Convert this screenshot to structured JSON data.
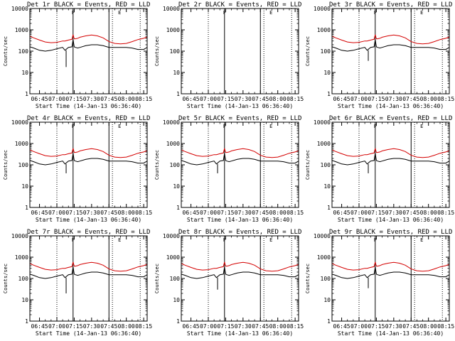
{
  "chart_data": [
    {
      "type": "line",
      "title": "Det 1r BLACK = Events, RED = LLD",
      "ylabel": "Counts/sec",
      "xlabel": "Start Time (14-Jan-13 06:36:40)",
      "x_ticks": [
        "06:45",
        "07:00",
        "07:15",
        "07:30",
        "07:45",
        "08:00",
        "08:15"
      ],
      "y_ticks": [
        "1",
        "10",
        "100",
        "1000",
        "10000"
      ],
      "ylim": [
        1,
        10000
      ],
      "scale": "log",
      "black_min": 18,
      "has_data": true,
      "flag_labels": [
        "F",
        "E"
      ],
      "series": [
        {
          "name": "Events",
          "color": "#000000"
        },
        {
          "name": "LLD",
          "color": "#d40000"
        }
      ]
    },
    {
      "type": "line",
      "title": "Det 2r BLACK = Events, RED = LLD",
      "ylabel": "Counts/sec",
      "xlabel": "Start Time (14-Jan-13 06:36:40)",
      "x_ticks": [
        "06:45",
        "07:00",
        "07:15",
        "07:30",
        "07:45",
        "08:00",
        "08:15"
      ],
      "y_ticks": [
        "1",
        "10",
        "100",
        "1000",
        "10000"
      ],
      "ylim": [
        1,
        10000
      ],
      "scale": "log",
      "black_min": 0,
      "has_data": false,
      "flag_labels": [
        "F",
        "E"
      ],
      "series": [
        {
          "name": "Events",
          "color": "#000000"
        },
        {
          "name": "LLD",
          "color": "#d40000"
        }
      ]
    },
    {
      "type": "line",
      "title": "Det 3r BLACK = Events, RED = LLD",
      "ylabel": "Counts/sec",
      "xlabel": "Start Time (14-Jan-13 06:36:40)",
      "x_ticks": [
        "06:45",
        "07:00",
        "07:15",
        "07:30",
        "07:45",
        "08:00",
        "08:15"
      ],
      "y_ticks": [
        "1",
        "10",
        "100",
        "1000",
        "10000"
      ],
      "ylim": [
        1,
        10000
      ],
      "scale": "log",
      "black_min": 35,
      "has_data": true,
      "flag_labels": [
        "F",
        "E"
      ],
      "series": [
        {
          "name": "Events",
          "color": "#000000"
        },
        {
          "name": "LLD",
          "color": "#d40000"
        }
      ]
    },
    {
      "type": "line",
      "title": "Det 4r BLACK = Events, RED = LLD",
      "ylabel": "Counts/sec",
      "xlabel": "Start Time (14-Jan-13 06:36:40)",
      "x_ticks": [
        "06:45",
        "07:00",
        "07:15",
        "07:30",
        "07:45",
        "08:00",
        "08:15"
      ],
      "y_ticks": [
        "1",
        "10",
        "100",
        "1000",
        "10000"
      ],
      "ylim": [
        1,
        10000
      ],
      "scale": "log",
      "black_min": 40,
      "has_data": true,
      "flag_labels": [
        "F",
        "E"
      ],
      "series": [
        {
          "name": "Events",
          "color": "#000000"
        },
        {
          "name": "LLD",
          "color": "#d40000"
        }
      ]
    },
    {
      "type": "line",
      "title": "Det 5r BLACK = Events, RED = LLD",
      "ylabel": "Counts/sec",
      "xlabel": "Start Time (14-Jan-13 06:36:40)",
      "x_ticks": [
        "06:45",
        "07:00",
        "07:15",
        "07:30",
        "07:45",
        "08:00",
        "08:15"
      ],
      "y_ticks": [
        "1",
        "10",
        "100",
        "1000",
        "10000"
      ],
      "ylim": [
        1,
        10000
      ],
      "scale": "log",
      "black_min": 40,
      "has_data": true,
      "flag_labels": [
        "F",
        "E"
      ],
      "series": [
        {
          "name": "Events",
          "color": "#000000"
        },
        {
          "name": "LLD",
          "color": "#d40000"
        }
      ]
    },
    {
      "type": "line",
      "title": "Det 6r BLACK = Events, RED = LLD",
      "ylabel": "Counts/sec",
      "xlabel": "Start Time (14-Jan-13 06:36:40)",
      "x_ticks": [
        "06:45",
        "07:00",
        "07:15",
        "07:30",
        "07:45",
        "08:00",
        "08:15"
      ],
      "y_ticks": [
        "1",
        "10",
        "100",
        "1000",
        "10000"
      ],
      "ylim": [
        1,
        10000
      ],
      "scale": "log",
      "black_min": 40,
      "has_data": true,
      "flag_labels": [
        "F",
        "E"
      ],
      "series": [
        {
          "name": "Events",
          "color": "#000000"
        },
        {
          "name": "LLD",
          "color": "#d40000"
        }
      ]
    },
    {
      "type": "line",
      "title": "Det 7r BLACK = Events, RED = LLD",
      "ylabel": "Counts/sec",
      "xlabel": "Start Time (14-Jan-13 06:36:40)",
      "x_ticks": [
        "06:45",
        "07:00",
        "07:15",
        "07:30",
        "07:45",
        "08:00",
        "08:15"
      ],
      "y_ticks": [
        "1",
        "10",
        "100",
        "1000",
        "10000"
      ],
      "ylim": [
        1,
        10000
      ],
      "scale": "log",
      "black_min": 20,
      "has_data": true,
      "flag_labels": [
        "F",
        "E"
      ],
      "series": [
        {
          "name": "Events",
          "color": "#000000"
        },
        {
          "name": "LLD",
          "color": "#d40000"
        }
      ]
    },
    {
      "type": "line",
      "title": "Det 8r BLACK = Events, RED = LLD",
      "ylabel": "Counts/sec",
      "xlabel": "Start Time (14-Jan-13 06:36:40)",
      "x_ticks": [
        "06:45",
        "07:00",
        "07:15",
        "07:30",
        "07:45",
        "08:00",
        "08:15"
      ],
      "y_ticks": [
        "1",
        "10",
        "100",
        "1000",
        "10000"
      ],
      "ylim": [
        1,
        10000
      ],
      "scale": "log",
      "black_min": 30,
      "has_data": true,
      "flag_labels": [
        "F",
        "E"
      ],
      "series": [
        {
          "name": "Events",
          "color": "#000000"
        },
        {
          "name": "LLD",
          "color": "#d40000"
        }
      ]
    },
    {
      "type": "line",
      "title": "Det 9r BLACK = Events, RED = LLD",
      "ylabel": "Counts/sec",
      "xlabel": "Start Time (14-Jan-13 06:36:40)",
      "x_ticks": [
        "06:45",
        "07:00",
        "07:15",
        "07:30",
        "07:45",
        "08:00",
        "08:15"
      ],
      "y_ticks": [
        "1",
        "10",
        "100",
        "1000",
        "10000"
      ],
      "ylim": [
        1,
        10000
      ],
      "scale": "log",
      "black_min": 35,
      "has_data": true,
      "flag_labels": [
        "F",
        "E"
      ],
      "series": [
        {
          "name": "Events",
          "color": "#000000"
        },
        {
          "name": "LLD",
          "color": "#d40000"
        }
      ]
    }
  ],
  "shared": {
    "x_times": [
      "06:36:40",
      "06:40",
      "06:45",
      "06:50",
      "06:55",
      "07:00",
      "07:05",
      "07:07",
      "07:10",
      "07:13",
      "07:14",
      "07:15",
      "07:16",
      "07:18",
      "07:20",
      "07:25",
      "07:30",
      "07:35",
      "07:40",
      "07:45",
      "07:50",
      "07:55",
      "08:00",
      "08:05",
      "08:10",
      "08:15",
      "08:18"
    ],
    "black_values": [
      160,
      140,
      110,
      100,
      110,
      130,
      150,
      110,
      150,
      160,
      350,
      160,
      150,
      140,
      150,
      180,
      200,
      200,
      180,
      150,
      150,
      150,
      150,
      140,
      120,
      120,
      150
    ],
    "red_values": [
      500,
      420,
      330,
      270,
      250,
      260,
      300,
      300,
      330,
      360,
      600,
      380,
      380,
      400,
      450,
      520,
      570,
      520,
      420,
      280,
      230,
      220,
      230,
      280,
      350,
      400,
      460
    ],
    "dotted_lines": [
      "07:00",
      "07:48",
      "08:12"
    ],
    "solid_lines": [
      "07:14",
      "07:45"
    ],
    "x_range": [
      "06:36:40",
      "08:18"
    ]
  }
}
